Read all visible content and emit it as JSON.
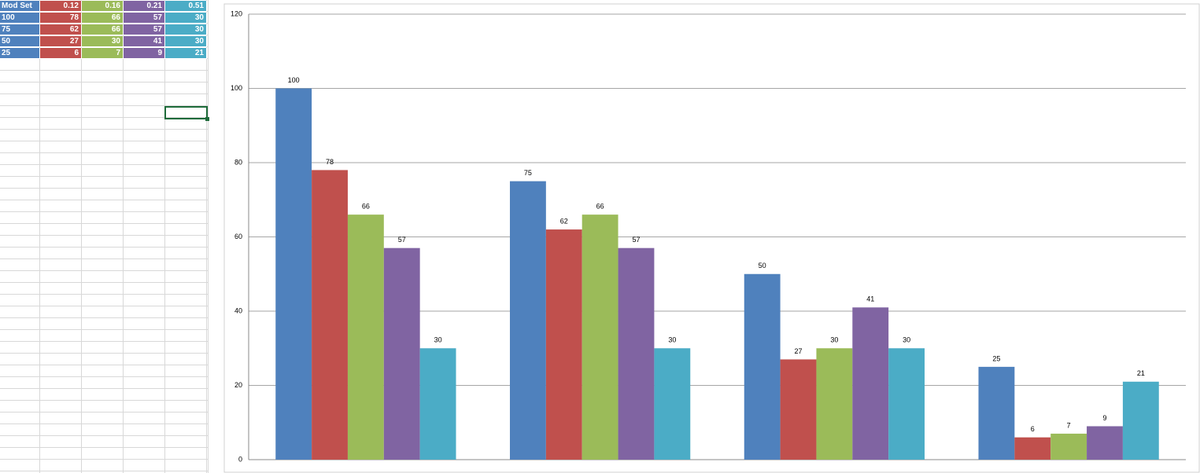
{
  "table": {
    "header": [
      "Mod Set",
      "0.12",
      "0.16",
      "0.21",
      "0.51"
    ],
    "rows": [
      [
        100,
        78,
        66,
        57,
        30
      ],
      [
        75,
        62,
        66,
        57,
        30
      ],
      [
        50,
        27,
        30,
        41,
        30
      ],
      [
        25,
        6,
        7,
        9,
        21
      ]
    ]
  },
  "chart_data": {
    "type": "bar",
    "categories": [
      null,
      null,
      null,
      null
    ],
    "series": [
      {
        "color": "#4f81bd",
        "values": [
          100,
          75,
          50,
          25
        ]
      },
      {
        "color": "#c0504d",
        "values": [
          78,
          62,
          27,
          6
        ]
      },
      {
        "color": "#9bbb59",
        "values": [
          66,
          66,
          30,
          7
        ]
      },
      {
        "color": "#8064a2",
        "values": [
          57,
          57,
          41,
          9
        ]
      },
      {
        "color": "#4bacc6",
        "values": [
          30,
          30,
          30,
          21
        ]
      }
    ],
    "ylim": [
      0,
      120
    ],
    "yticks": [
      0,
      20,
      40,
      60,
      80,
      100,
      120
    ],
    "grid": true,
    "data_labels": true
  }
}
